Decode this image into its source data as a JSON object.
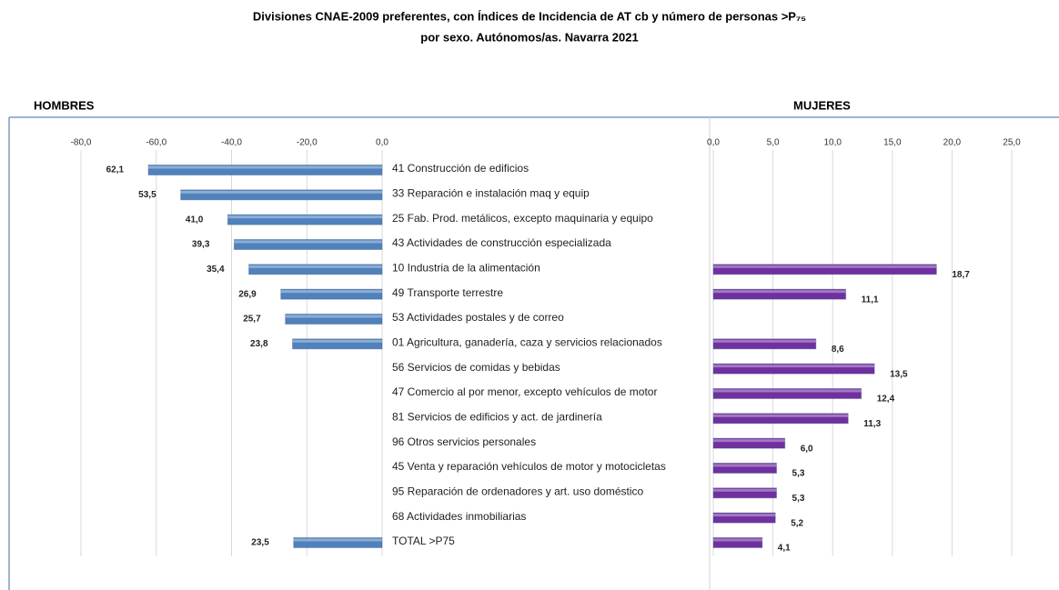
{
  "chart_data": {
    "type": "bar",
    "orientation": "horizontal",
    "title": "Divisiones CNAE-2009 preferentes, con Índices de Incidencia de AT cb y número de personas >P₇₅",
    "subtitle": "por sexo. Autónomos/as. Navarra 2021",
    "categories": [
      "41 Construcción de edificios",
      "33 Reparación e instalación maq y equip",
      "25 Fab. Prod. metálicos, excepto maquinaria y equipo",
      "43 Actividades de construcción especializada",
      "10 Industria de la alimentación",
      "49 Transporte terrestre",
      "53 Actividades postales y de correo",
      "01 Agricultura, ganadería, caza y servicios relacionados",
      "56 Servicios de comidas y bebidas",
      "47 Comercio al por menor, excepto vehículos de motor",
      "81 Servicios de edificios y act. de jardinería",
      "96 Otros servicios personales",
      "45 Venta y reparación vehículos de motor y motocicletas",
      "95 Reparación de ordenadores y art. uso doméstico",
      "68 Actividades inmobiliarias",
      "TOTAL >P75"
    ],
    "grid": true,
    "series": [
      {
        "name": "HOMBRES",
        "color": "#4f81bd",
        "values": [
          -62.1,
          -53.5,
          -41.0,
          -39.3,
          -35.4,
          -26.9,
          -25.7,
          -23.8,
          null,
          null,
          null,
          null,
          null,
          null,
          null,
          -23.5
        ],
        "value_labels": [
          "62,1",
          "53,5",
          "41,0",
          "39,3",
          "35,4",
          "26,9",
          "25,7",
          "23,8",
          null,
          null,
          null,
          null,
          null,
          null,
          null,
          "23,5"
        ],
        "xlim": [
          -80,
          0
        ],
        "xticks": [
          {
            "value": -80,
            "label": "-80,0"
          },
          {
            "value": -60,
            "label": "-60,0"
          },
          {
            "value": -40,
            "label": "-40,0"
          },
          {
            "value": -20,
            "label": "-20,0"
          },
          {
            "value": 0,
            "label": "0,0"
          }
        ]
      },
      {
        "name": "MUJERES",
        "color": "#7030a0",
        "values": [
          null,
          null,
          null,
          null,
          18.7,
          11.1,
          null,
          8.6,
          13.5,
          12.4,
          11.3,
          6.0,
          5.3,
          5.3,
          5.2,
          4.1
        ],
        "value_labels": [
          null,
          null,
          null,
          null,
          "18,7",
          "11,1",
          null,
          "8,6",
          "13,5",
          "12,4",
          "11,3",
          "6,0",
          "5,3",
          "5,3",
          "5,2",
          "4,1"
        ],
        "xlim": [
          0,
          25
        ],
        "xticks": [
          {
            "value": 0,
            "label": "0,0"
          },
          {
            "value": 5,
            "label": "5,0"
          },
          {
            "value": 10,
            "label": "10,0"
          },
          {
            "value": 15,
            "label": "15,0"
          },
          {
            "value": 20,
            "label": "20,0"
          },
          {
            "value": 25,
            "label": "25,0"
          }
        ]
      }
    ]
  }
}
